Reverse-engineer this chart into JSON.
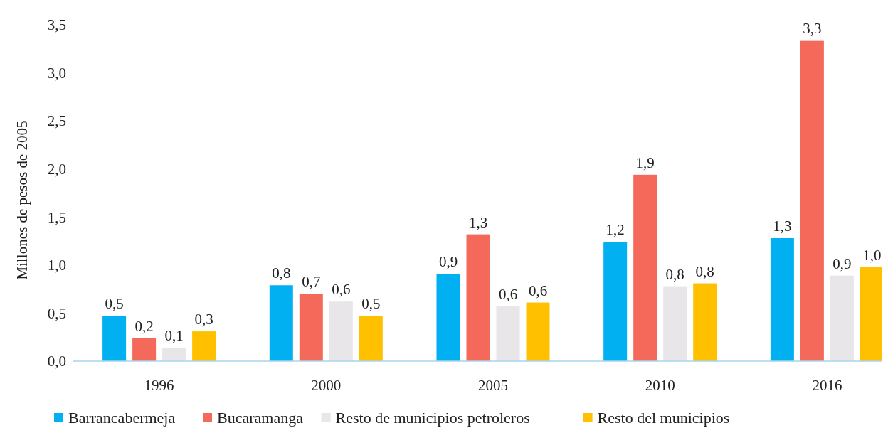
{
  "chart_data": {
    "type": "bar",
    "ylabel": "Millones de pesos de 2005",
    "categories": [
      "1996",
      "2000",
      "2005",
      "2010",
      "2016"
    ],
    "series": [
      {
        "name": "Barrancabermeja",
        "color": "#00b0f0",
        "values": [
          0.47,
          0.79,
          0.91,
          1.24,
          1.28
        ],
        "value_labels": [
          "0,5",
          "0,8",
          "0,9",
          "1,2",
          "1,3"
        ]
      },
      {
        "name": "Bucaramanga",
        "color": "#f4695a",
        "values": [
          0.24,
          0.7,
          1.32,
          1.94,
          3.34
        ],
        "value_labels": [
          "0,2",
          "0,7",
          "1,3",
          "1,9",
          "3,3"
        ]
      },
      {
        "name": "Resto de municipios petroleros",
        "color": "#e8e6e8",
        "values": [
          0.14,
          0.62,
          0.57,
          0.78,
          0.89
        ],
        "value_labels": [
          "0,1",
          "0,6",
          "0,6",
          "0,8",
          "0,9"
        ]
      },
      {
        "name": "Resto del municipios",
        "color": "#ffc000",
        "values": [
          0.31,
          0.47,
          0.61,
          0.81,
          0.98
        ],
        "value_labels": [
          "0,3",
          "0,5",
          "0,6",
          "0,8",
          "1,0"
        ]
      }
    ],
    "ylim": [
      0,
      3.5
    ],
    "yticks": [
      {
        "value": 0,
        "label": "0,0"
      },
      {
        "value": 0.5,
        "label": "0,5"
      },
      {
        "value": 1,
        "label": "1,0"
      },
      {
        "value": 1.5,
        "label": "1,5"
      },
      {
        "value": 2,
        "label": "2,0"
      },
      {
        "value": 2.5,
        "label": "2,5"
      },
      {
        "value": 3,
        "label": "3,0"
      },
      {
        "value": 3.5,
        "label": "3,5"
      }
    ],
    "grid": false,
    "legend": "bottom"
  }
}
